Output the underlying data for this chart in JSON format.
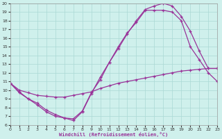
{
  "xlabel": "Windchill (Refroidissement éolien,°C)",
  "xlim": [
    0,
    23
  ],
  "ylim": [
    6,
    20
  ],
  "yticks": [
    6,
    7,
    8,
    9,
    10,
    11,
    12,
    13,
    14,
    15,
    16,
    17,
    18,
    19,
    20
  ],
  "xticks": [
    0,
    1,
    2,
    3,
    4,
    5,
    6,
    7,
    8,
    9,
    10,
    11,
    12,
    13,
    14,
    15,
    16,
    17,
    18,
    19,
    20,
    21,
    22,
    23
  ],
  "bg_color": "#cff0ec",
  "grid_color": "#aad8d4",
  "line_color": "#993399",
  "line1_x": [
    0,
    1,
    2,
    3,
    4,
    5,
    6,
    7,
    8,
    9,
    10,
    11,
    12,
    13,
    14,
    15,
    16,
    17,
    18,
    19,
    20,
    21,
    22,
    23
  ],
  "line1_y": [
    10.8,
    9.8,
    9.0,
    8.5,
    7.7,
    7.2,
    6.8,
    6.7,
    7.6,
    9.7,
    11.2,
    13.2,
    14.8,
    16.5,
    18.0,
    19.3,
    19.7,
    20.0,
    19.7,
    18.5,
    16.8,
    14.5,
    12.5,
    12.5
  ],
  "line2_x": [
    0,
    1,
    2,
    3,
    4,
    5,
    6,
    7,
    8,
    9,
    10,
    11,
    12,
    13,
    14,
    15,
    16,
    17,
    18,
    19,
    20,
    21,
    22,
    23
  ],
  "line2_y": [
    10.8,
    9.7,
    9.0,
    8.3,
    7.5,
    7.0,
    6.8,
    6.5,
    7.5,
    9.6,
    11.5,
    13.2,
    15.0,
    16.6,
    17.8,
    19.2,
    19.2,
    19.2,
    19.0,
    18.0,
    15.0,
    13.5,
    12.0,
    11.0
  ],
  "line3_x": [
    0,
    1,
    2,
    3,
    4,
    5,
    6,
    7,
    8,
    9,
    10,
    11,
    12,
    13,
    14,
    15,
    16,
    17,
    18,
    19,
    20,
    21,
    22,
    23
  ],
  "line3_y": [
    10.8,
    10.0,
    9.7,
    9.4,
    9.3,
    9.2,
    9.2,
    9.4,
    9.6,
    9.8,
    10.2,
    10.5,
    10.8,
    11.0,
    11.2,
    11.4,
    11.6,
    11.8,
    12.0,
    12.2,
    12.3,
    12.4,
    12.5,
    12.5
  ]
}
